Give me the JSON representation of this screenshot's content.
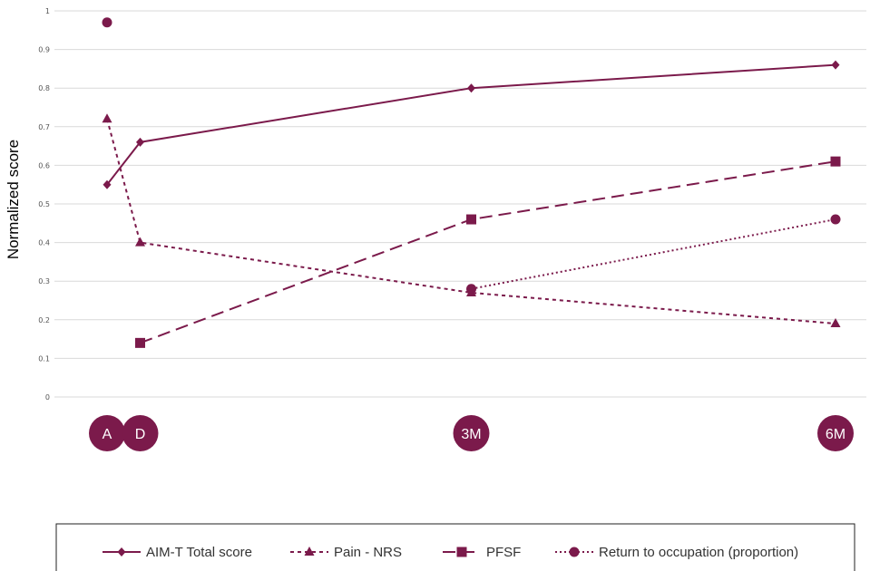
{
  "colors": {
    "series": "#7b1a4b",
    "grid": "#d9d9d9",
    "tick_text": "#555555",
    "time_circle": "#7b1a4b"
  },
  "chart_data": {
    "type": "line",
    "ylabel": "Normalized score",
    "ylim": [
      0,
      1
    ],
    "y_ticks": [
      "0",
      "0.1",
      "0.2",
      "0.3",
      "0.4",
      "0.5",
      "0.6",
      "0.7",
      "0.8",
      "0.9",
      "1"
    ],
    "grid": true,
    "legend_position": "bottom",
    "time_points": [
      {
        "label": "A",
        "x": 0
      },
      {
        "label": "D",
        "x": 1
      },
      {
        "label": "3M",
        "x": 11
      },
      {
        "label": "6M",
        "x": 22
      }
    ],
    "series": [
      {
        "name": "AIM-T Total score",
        "marker": "diamond",
        "dash": "solid",
        "points": [
          {
            "x": 0,
            "y": 0.55
          },
          {
            "x": 1,
            "y": 0.66
          },
          {
            "x": 11,
            "y": 0.8
          },
          {
            "x": 22,
            "y": 0.86
          }
        ]
      },
      {
        "name": "Pain - NRS",
        "marker": "triangle",
        "dash": "short",
        "points": [
          {
            "x": 0,
            "y": 0.72
          },
          {
            "x": 1,
            "y": 0.4
          },
          {
            "x": 11,
            "y": 0.27
          },
          {
            "x": 22,
            "y": 0.19
          }
        ]
      },
      {
        "name": "PFSF",
        "marker": "square",
        "dash": "long",
        "points": [
          {
            "x": 1,
            "y": 0.14
          },
          {
            "x": 11,
            "y": 0.46
          },
          {
            "x": 22,
            "y": 0.61
          }
        ]
      },
      {
        "name": "Return to occupation (proportion)",
        "marker": "circle",
        "dash": "dotted",
        "points": [
          {
            "x": 0,
            "y": 0.97
          },
          {
            "x": 11,
            "y": 0.28
          },
          {
            "x": 22,
            "y": 0.46
          }
        ],
        "line_from_index": 1
      }
    ]
  }
}
